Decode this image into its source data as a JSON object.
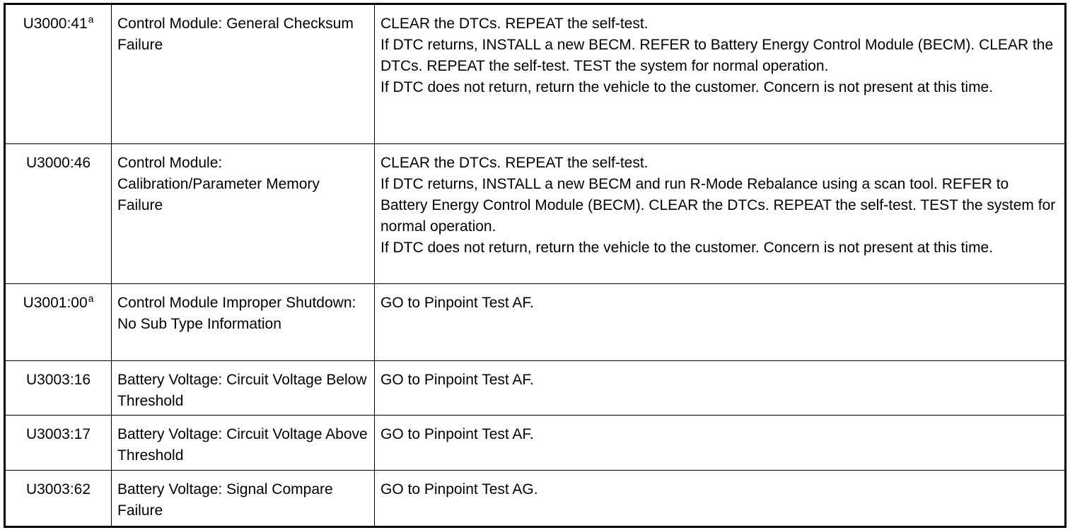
{
  "rows": [
    {
      "code": "U3000:41",
      "sup": "a",
      "description": "Control Module: General Checksum Failure",
      "action": [
        "CLEAR the DTCs. REPEAT the self-test.",
        "If DTC returns, INSTALL a new BECM. REFER to Battery Energy Control Module (BECM). CLEAR the DTCs. REPEAT the self-test. TEST the system for normal operation.",
        "If DTC does not return, return the vehicle to the customer. Concern is not present at this time."
      ]
    },
    {
      "code": "U3000:46",
      "sup": "",
      "description": "Control Module: Calibration/Parameter Memory Failure",
      "action": [
        "CLEAR the DTCs. REPEAT the self-test.",
        "If DTC returns, INSTALL a new BECM and run R-Mode Rebalance using a scan tool. REFER to Battery Energy Control Module (BECM). CLEAR the DTCs. REPEAT the self-test. TEST the system for normal operation.",
        "If DTC does not return, return the vehicle to the customer. Concern is not present at this time."
      ]
    },
    {
      "code": "U3001:00",
      "sup": "a",
      "description": "Control Module Improper Shutdown: No Sub Type Information",
      "action": [
        "GO to Pinpoint Test AF."
      ]
    },
    {
      "code": "U3003:16",
      "sup": "",
      "description": "Battery Voltage: Circuit Voltage Below Threshold",
      "action": [
        "GO to Pinpoint Test AF."
      ]
    },
    {
      "code": "U3003:17",
      "sup": "",
      "description": "Battery Voltage: Circuit Voltage Above Threshold",
      "action": [
        "GO to Pinpoint Test AF."
      ]
    },
    {
      "code": "U3003:62",
      "sup": "",
      "description": "Battery Voltage: Signal Compare Failure",
      "action": [
        "GO to Pinpoint Test AG."
      ]
    }
  ]
}
